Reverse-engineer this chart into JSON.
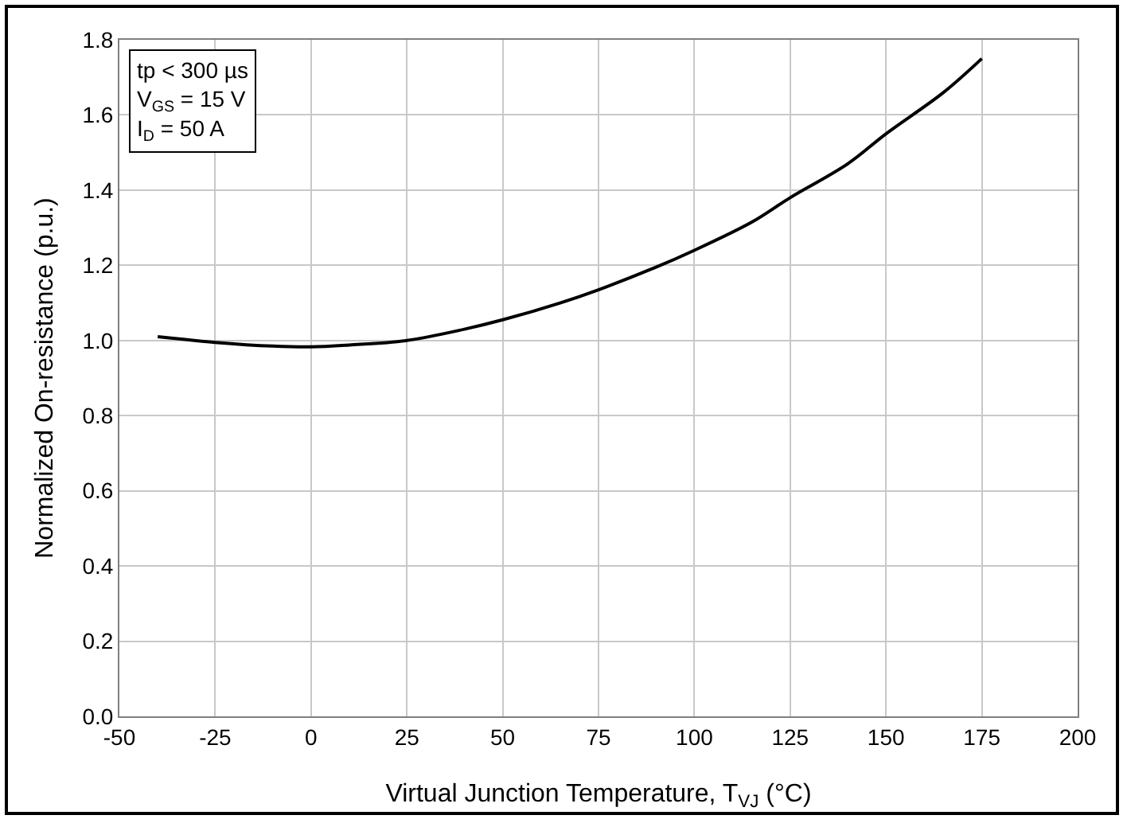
{
  "chart_data": {
    "type": "line",
    "xlabel": "Virtual Junction Temperature, T$_{VJ}$ (°C)",
    "ylabel": "Normalized On-resistance (p.u.)",
    "annotations": [
      "tp < 300 µs",
      "V$_{GS}$ = 15 V",
      "I$_{D}$ = 50 A"
    ],
    "x": [
      -40,
      -25,
      -10,
      0,
      10,
      25,
      40,
      50,
      65,
      75,
      90,
      100,
      115,
      125,
      140,
      150,
      165,
      175
    ],
    "series": [
      {
        "color": "#000000",
        "values": [
          1.01,
          0.995,
          0.985,
          0.983,
          0.988,
          1.0,
          1.03,
          1.055,
          1.1,
          1.135,
          1.195,
          1.24,
          1.315,
          1.38,
          1.47,
          1.55,
          1.66,
          1.75
        ]
      }
    ],
    "xlim": [
      -50,
      200
    ],
    "xticks": [
      -50,
      -25,
      0,
      25,
      50,
      75,
      100,
      125,
      150,
      175,
      200
    ],
    "ylim": [
      0,
      1.8
    ],
    "yticks": [
      {
        "value": 0,
        "label": "0.0"
      },
      0.2,
      0.4,
      0.6,
      0.8,
      {
        "value": 1,
        "label": "1.0"
      },
      1.2,
      1.4,
      1.6,
      1.8
    ],
    "grid": true,
    "marker": "none",
    "line_style": "solid"
  }
}
